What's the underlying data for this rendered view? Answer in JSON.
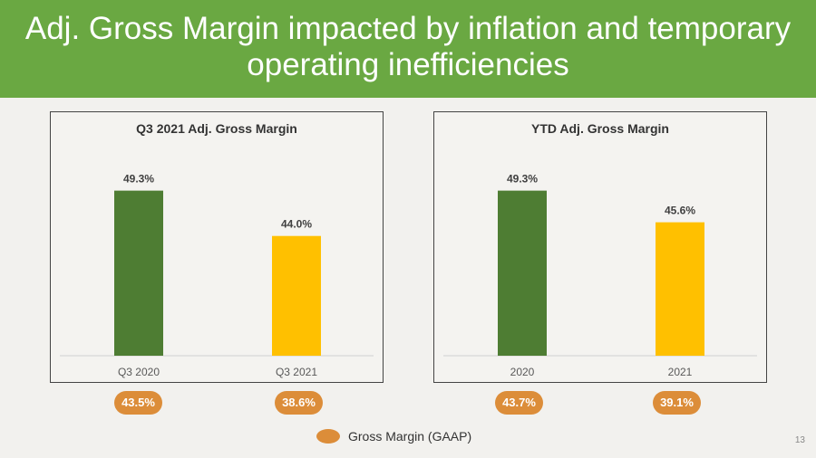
{
  "slide": {
    "title": "Adj. Gross Margin impacted by inflation and temporary operating inefficiencies",
    "page_number": "13",
    "legend_label": "Gross Margin (GAAP)"
  },
  "colors": {
    "header": "#6aa842",
    "bar_prior": "#4e7d33",
    "bar_current": "#ffc000",
    "gaap_badge": "#dc8d39"
  },
  "chart_data": [
    {
      "type": "bar",
      "title": "Q3 2021 Adj. Gross Margin",
      "categories": [
        "Q3 2020",
        "Q3 2021"
      ],
      "values": [
        49.3,
        44.0
      ],
      "value_labels": [
        "49.3%",
        "44.0%"
      ],
      "bar_colors": [
        "#4e7d33",
        "#ffc000"
      ],
      "gaap_labels": [
        "43.5%",
        "38.6%"
      ],
      "ylim": [
        30,
        55
      ]
    },
    {
      "type": "bar",
      "title": "YTD Adj. Gross Margin",
      "categories": [
        "2020",
        "2021"
      ],
      "values": [
        49.3,
        45.6
      ],
      "value_labels": [
        "49.3%",
        "45.6%"
      ],
      "bar_colors": [
        "#4e7d33",
        "#ffc000"
      ],
      "gaap_labels": [
        "43.7%",
        "39.1%"
      ],
      "ylim": [
        30,
        55
      ]
    }
  ]
}
